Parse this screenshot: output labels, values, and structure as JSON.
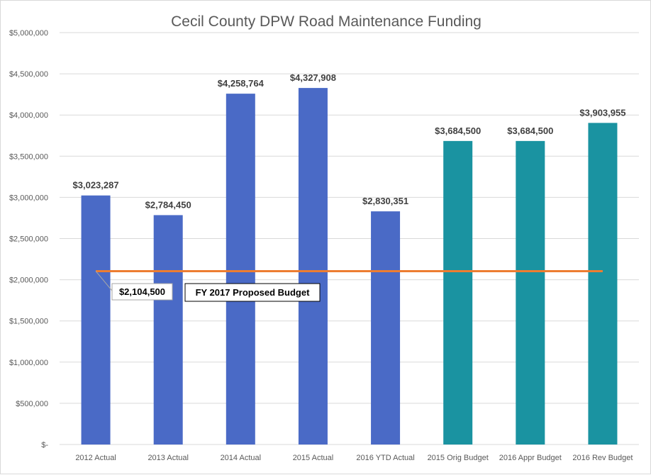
{
  "chart_data": {
    "type": "bar",
    "title": "Cecil County DPW Road Maintenance Funding",
    "xlabel": "",
    "ylabel": "",
    "ylim": [
      0,
      5000000
    ],
    "y_ticks": [
      0,
      500000,
      1000000,
      1500000,
      2000000,
      2500000,
      3000000,
      3500000,
      4000000,
      4500000,
      5000000
    ],
    "y_tick_labels": [
      "$-",
      "$500,000",
      "$1,000,000",
      "$1,500,000",
      "$2,000,000",
      "$2,500,000",
      "$3,000,000",
      "$3,500,000",
      "$4,000,000",
      "$4,500,000",
      "$5,000,000"
    ],
    "grid": true,
    "legend": "none",
    "categories": [
      "2012 Actual",
      "2013 Actual",
      "2014 Actual",
      "2015 Actual",
      "2016 YTD Actual",
      "2015 Orig Budget",
      "2016 Appr Budget",
      "2016 Rev Budget"
    ],
    "values": [
      3023287,
      2784450,
      4258764,
      4327908,
      2830351,
      3684500,
      3684500,
      3903955
    ],
    "value_labels": [
      "$3,023,287",
      "$2,784,450",
      "$4,258,764",
      "$4,327,908",
      "$2,830,351",
      "$3,684,500",
      "$3,684,500",
      "$3,903,955"
    ],
    "bar_colors": [
      "#4a6ac6",
      "#4a6ac6",
      "#4a6ac6",
      "#4a6ac6",
      "#4a6ac6",
      "#1a93a1",
      "#1a93a1",
      "#1a93a1"
    ],
    "reference_line": {
      "value": 2104500,
      "value_label": "$2,104,500",
      "label": "FY 2017 Proposed Budget",
      "color": "#ed7d31"
    },
    "colors": {
      "actual": "#4a6ac6",
      "budget": "#1a93a1",
      "gridline": "#d9d9d9",
      "text": "#595959"
    }
  }
}
